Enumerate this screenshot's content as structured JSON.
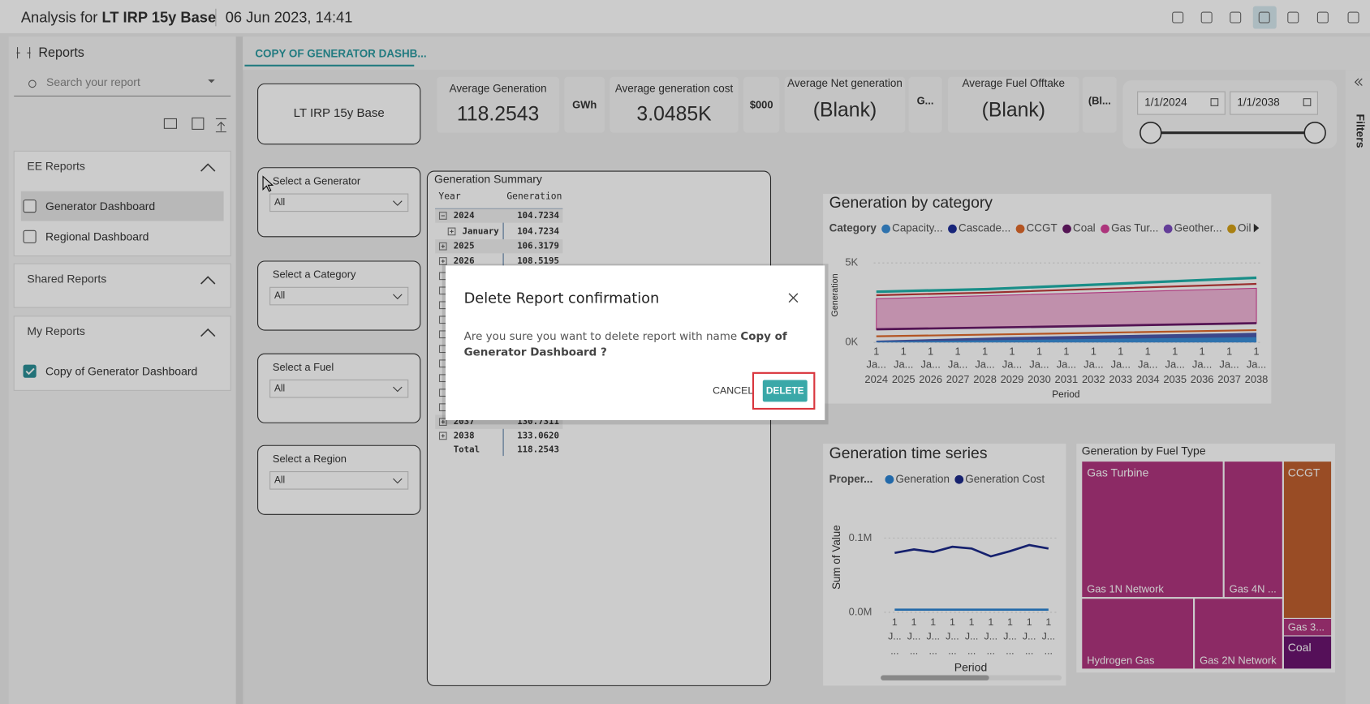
{
  "header": {
    "prefix": "Analysis for",
    "report": "LT IRP 15y Base",
    "timestamp": "06 Jun 2023, 14:41"
  },
  "sidebar": {
    "title": "Reports",
    "search_placeholder": "Search your report",
    "sections": [
      {
        "title": "EE Reports",
        "items": [
          {
            "label": "Generator Dashboard",
            "checked": false
          },
          {
            "label": "Regional Dashboard",
            "checked": false
          }
        ]
      },
      {
        "title": "Shared Reports",
        "items": []
      },
      {
        "title": "My Reports",
        "items": [
          {
            "label": "Copy of Generator Dashboard",
            "checked": true
          }
        ]
      }
    ]
  },
  "tab": "COPY OF GENERATOR DASHB...",
  "dashboard": {
    "scenario": "LT IRP 15y Base",
    "kpis": [
      {
        "label": "Average Generation",
        "value": "118.2543",
        "unit": "GWh"
      },
      {
        "label": "Average generation cost",
        "value": "3.0485K",
        "unit": "$000"
      },
      {
        "label": "Average Net generation",
        "value": "(Blank)",
        "unit": "G..."
      },
      {
        "label": "Average Fuel Offtake",
        "value": "(Blank)",
        "unit": "(Bl..."
      }
    ],
    "date_range": {
      "start": "1/1/2024",
      "end": "1/1/2038"
    },
    "slicers": [
      {
        "label": "Select a Generator",
        "value": "All"
      },
      {
        "label": "Select a Category",
        "value": "All"
      },
      {
        "label": "Select a Fuel",
        "value": "All"
      },
      {
        "label": "Select a Region",
        "value": "All"
      }
    ],
    "summary": {
      "title": "Generation Summary",
      "columns": [
        "Year",
        "Generation"
      ],
      "rows": [
        [
          "2024",
          "104.7234"
        ],
        [
          "January",
          "104.7234"
        ],
        [
          "2025",
          "106.3179"
        ],
        [
          "2026",
          "108.5195"
        ],
        [
          "2037",
          "130.7311"
        ],
        [
          "2038",
          "133.0620"
        ],
        [
          "Total",
          "118.2543"
        ]
      ]
    },
    "category_chart": {
      "title": "Generation by category",
      "legend_title": "Category",
      "legend": [
        {
          "name": "Capacity...",
          "color": "#3a8fd9"
        },
        {
          "name": "Cascade...",
          "color": "#1f2f99"
        },
        {
          "name": "CCGT",
          "color": "#e06a2b"
        },
        {
          "name": "Coal",
          "color": "#6a1a6a"
        },
        {
          "name": "Gas Tur...",
          "color": "#d9439b"
        },
        {
          "name": "Geother...",
          "color": "#7c4dbf"
        },
        {
          "name": "Oil",
          "color": "#d4a017"
        }
      ],
      "y_label": "Generation",
      "yticks": [
        "5K",
        "0K"
      ],
      "x_label": "Period",
      "x_ticks": [
        [
          "1",
          "Ja...",
          "2024"
        ],
        [
          "1",
          "Ja...",
          "2025"
        ],
        [
          "1",
          "Ja...",
          "2026"
        ],
        [
          "1",
          "Ja...",
          "2027"
        ],
        [
          "1",
          "Ja...",
          "2028"
        ],
        [
          "1",
          "Ja...",
          "2029"
        ],
        [
          "1",
          "Ja...",
          "2030"
        ],
        [
          "1",
          "Ja...",
          "2031"
        ],
        [
          "1",
          "Ja...",
          "2032"
        ],
        [
          "1",
          "Ja...",
          "2033"
        ],
        [
          "1",
          "Ja...",
          "2034"
        ],
        [
          "1",
          "Ja...",
          "2035"
        ],
        [
          "1",
          "Ja...",
          "2036"
        ],
        [
          "1",
          "Ja...",
          "2037"
        ],
        [
          "1",
          "Ja...",
          "2038"
        ]
      ]
    },
    "time_series": {
      "title": "Generation time series",
      "legend_title": "Proper...",
      "legend": [
        {
          "name": "Generation",
          "color": "#2b84d4"
        },
        {
          "name": "Generation Cost",
          "color": "#1c2a8a"
        }
      ],
      "y_label": "Sum of Value",
      "yticks": [
        "0.1M",
        "0.0M"
      ],
      "x_label": "Period",
      "x_ticks": [
        [
          "1",
          "J...",
          "..."
        ],
        [
          "1",
          "J...",
          "..."
        ],
        [
          "1",
          "J...",
          "..."
        ],
        [
          "1",
          "J...",
          "..."
        ],
        [
          "1",
          "J...",
          "..."
        ],
        [
          "1",
          "J...",
          "..."
        ],
        [
          "1",
          "J...",
          "..."
        ],
        [
          "1",
          "J...",
          "..."
        ],
        [
          "1",
          "J...",
          "..."
        ]
      ]
    },
    "treemap": {
      "title": "Generation by Fuel Type",
      "cells": [
        {
          "label": "Gas Turbine",
          "color": "#b0357f"
        },
        {
          "label": "Gas 1N Network",
          "color": "#b0357f"
        },
        {
          "label": "Gas 4N ...",
          "color": "#b0357f"
        },
        {
          "label": "CCGT",
          "color": "#c0602f"
        },
        {
          "label": "Gas 3...",
          "color": "#b0357f"
        },
        {
          "label": "Coal",
          "color": "#6b1470"
        },
        {
          "label": "Hydrogen Gas",
          "color": "#b0357f"
        },
        {
          "label": "Gas 2N Network",
          "color": "#b0357f"
        }
      ]
    }
  },
  "modal": {
    "title": "Delete Report confirmation",
    "message": "Are you sure you want to delete report with name",
    "report_name": "Copy of Generator Dashboard ?",
    "cancel": "CANCEL",
    "confirm": "DELETE"
  },
  "filters_pane": "Filters"
}
